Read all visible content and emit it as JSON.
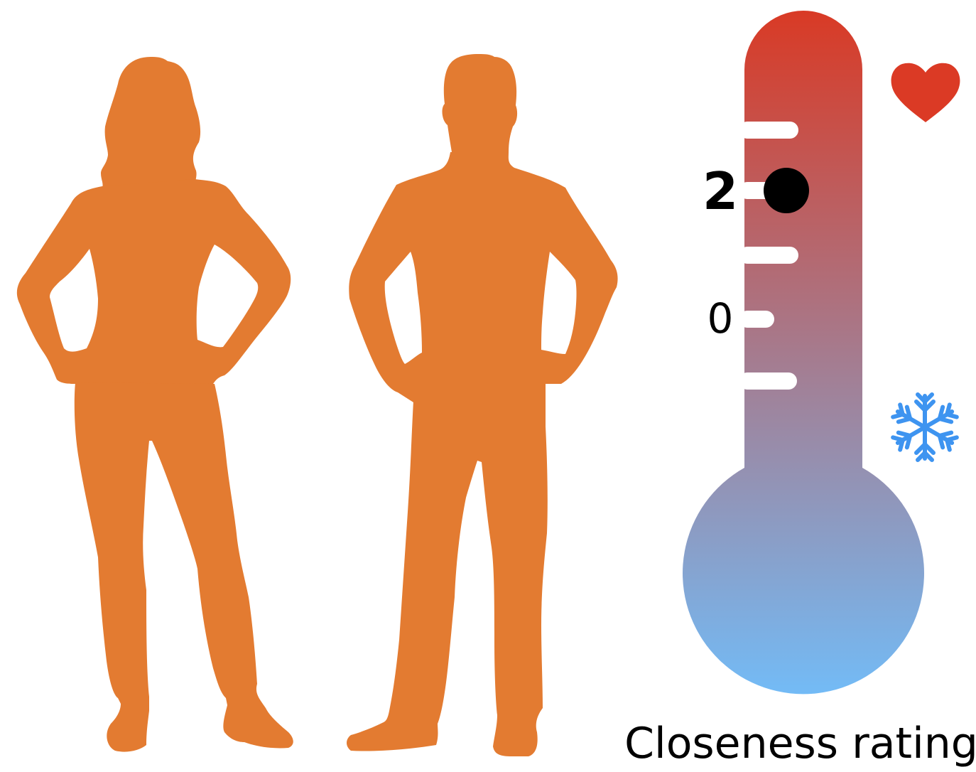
{
  "figure": {
    "caption": "Closeness rating",
    "people": [
      {
        "id": "woman",
        "color": "#E37B31"
      },
      {
        "id": "man",
        "color": "#E37B31"
      }
    ],
    "thermometer": {
      "top_color": "#D93A25",
      "bottom_color": "#73BBF6",
      "tick_color": "#FFFFFF",
      "labels": [
        {
          "text": "2",
          "bold": true
        },
        {
          "text": "0",
          "bold": false
        }
      ],
      "marker_color": "#000000",
      "selected_label": "2"
    },
    "icons": {
      "hot": {
        "name": "heart-icon",
        "color": "#DB3A25"
      },
      "cold": {
        "name": "snowflake-icon",
        "color": "#3E94F0"
      }
    }
  }
}
